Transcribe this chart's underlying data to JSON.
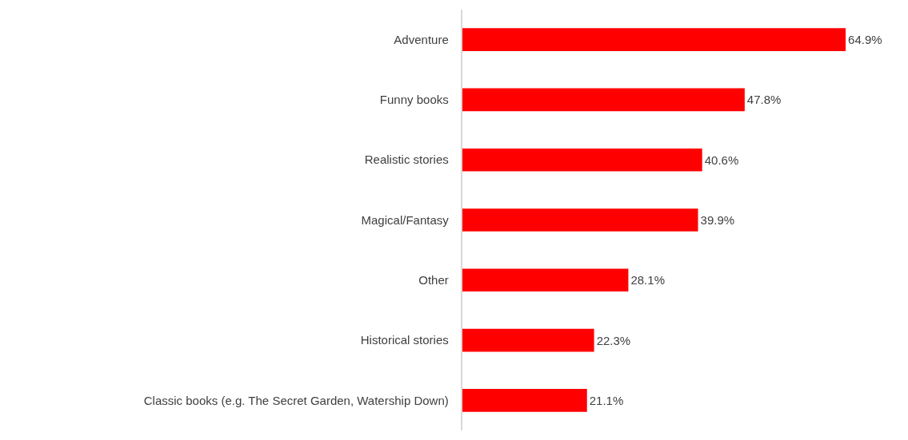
{
  "chart_data": {
    "type": "bar",
    "orientation": "horizontal",
    "categories": [
      "Adventure",
      "Funny books",
      "Realistic stories",
      "Magical/Fantasy",
      "Other",
      "Historical stories",
      "Classic books (e.g. The Secret Garden, Watership Down)"
    ],
    "values": [
      64.9,
      47.8,
      40.6,
      39.9,
      28.1,
      22.3,
      21.1
    ],
    "value_labels": [
      "64.9%",
      "47.8%",
      "40.6%",
      "39.9%",
      "28.1%",
      "22.3%",
      "21.1%"
    ],
    "color": "#ff0000"
  }
}
